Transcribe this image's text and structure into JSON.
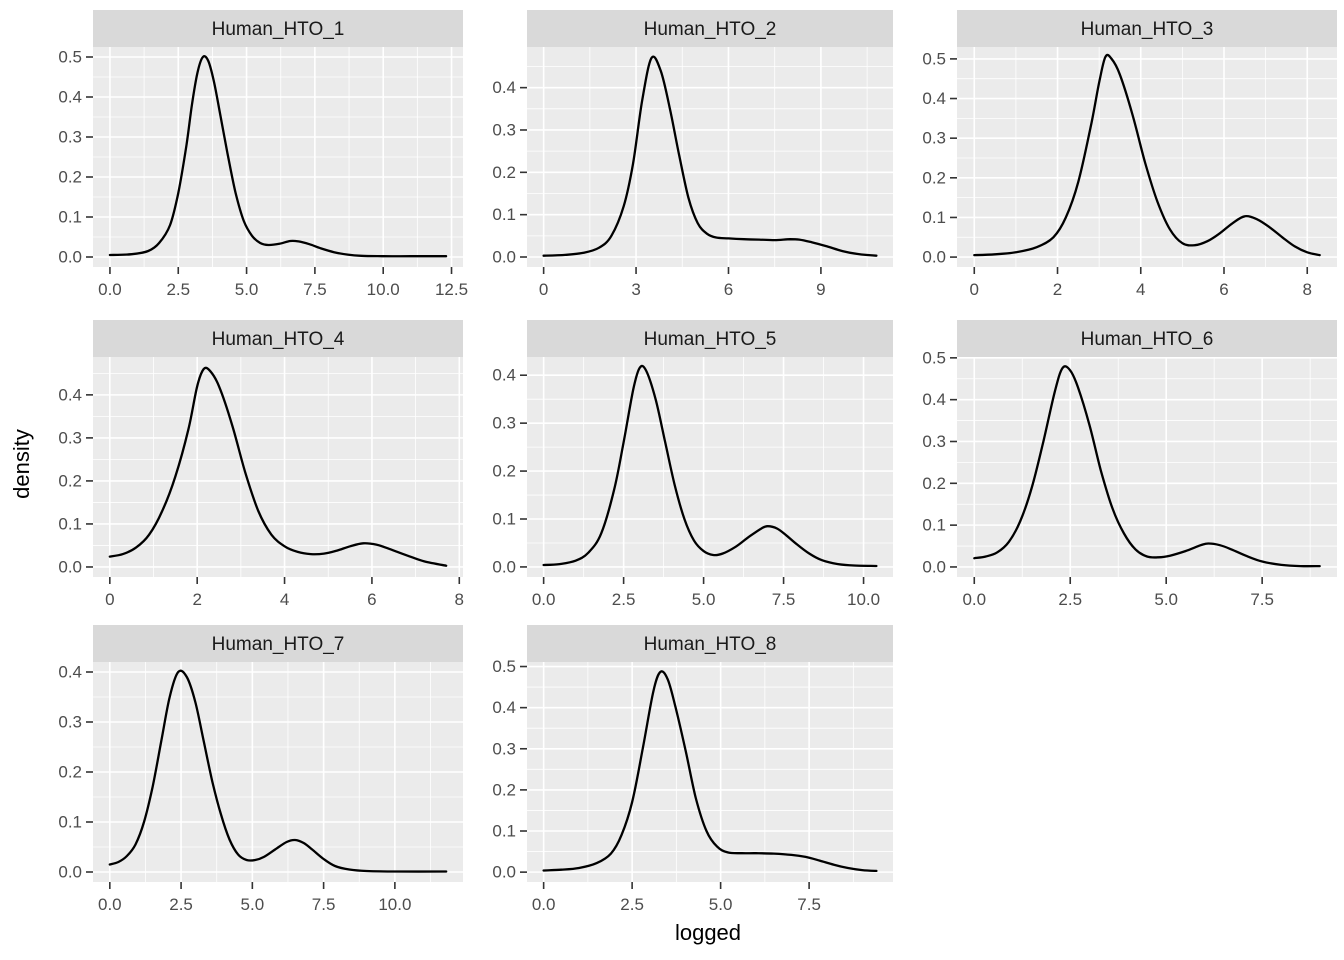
{
  "figure": {
    "background": "#FFFFFF"
  },
  "chart_data": {
    "type": "line",
    "subtype": "faceted_density_grid",
    "xlabel": "logged",
    "ylabel": "density",
    "grid": "on",
    "legend": "none",
    "facet_titles": [
      "Human_HTO_1",
      "Human_HTO_2",
      "Human_HTO_3",
      "Human_HTO_4",
      "Human_HTO_5",
      "Human_HTO_6",
      "Human_HTO_7",
      "Human_HTO_8"
    ],
    "colors": {
      "panel_bg": "#EBEBEB",
      "strip_bg": "#D9D9D9",
      "grid_major": "#FFFFFF",
      "grid_minor": "#FFFFFF",
      "curve": "#000000",
      "tick_label": "#4D4D4D",
      "tick_mark": "#333333",
      "strip_text": "#1A1A1A",
      "axis_title": "#000000"
    },
    "panels": [
      {
        "title": "Human_HTO_1",
        "xlim": [
          -0.62,
          12.92
        ],
        "ylim": [
          -0.025,
          0.525
        ],
        "xtick_values": [
          0,
          2.5,
          5,
          7.5,
          10,
          12.5
        ],
        "xtick_labels": [
          "0.0",
          "2.5",
          "5.0",
          "7.5",
          "10.0",
          "12.5"
        ],
        "ytick_values": [
          0,
          0.1,
          0.2,
          0.3,
          0.4,
          0.5
        ],
        "ytick_labels": [
          "0.0",
          "0.1",
          "0.2",
          "0.3",
          "0.4",
          "0.5"
        ],
        "points": [
          [
            0,
            0.005
          ],
          [
            0.8,
            0.007
          ],
          [
            1.4,
            0.015
          ],
          [
            1.8,
            0.035
          ],
          [
            2.2,
            0.08
          ],
          [
            2.5,
            0.16
          ],
          [
            2.8,
            0.28
          ],
          [
            3.0,
            0.38
          ],
          [
            3.2,
            0.46
          ],
          [
            3.4,
            0.5
          ],
          [
            3.6,
            0.49
          ],
          [
            3.8,
            0.44
          ],
          [
            4.0,
            0.37
          ],
          [
            4.3,
            0.26
          ],
          [
            4.6,
            0.16
          ],
          [
            4.9,
            0.09
          ],
          [
            5.2,
            0.053
          ],
          [
            5.5,
            0.035
          ],
          [
            5.8,
            0.03
          ],
          [
            6.2,
            0.033
          ],
          [
            6.6,
            0.04
          ],
          [
            6.9,
            0.039
          ],
          [
            7.3,
            0.032
          ],
          [
            7.7,
            0.022
          ],
          [
            8.2,
            0.012
          ],
          [
            8.7,
            0.006
          ],
          [
            9.2,
            0.003
          ],
          [
            10,
            0.002
          ],
          [
            11,
            0.002
          ],
          [
            12.3,
            0.002
          ]
        ]
      },
      {
        "title": "Human_HTO_2",
        "xlim": [
          -0.54,
          11.34
        ],
        "ylim": [
          -0.0236,
          0.496
        ],
        "xtick_values": [
          0,
          3,
          6,
          9
        ],
        "xtick_labels": [
          "0",
          "3",
          "6",
          "9"
        ],
        "ytick_values": [
          0,
          0.1,
          0.2,
          0.3,
          0.4
        ],
        "ytick_labels": [
          "0.0",
          "0.1",
          "0.2",
          "0.3",
          "0.4"
        ],
        "points": [
          [
            0,
            0.003
          ],
          [
            0.7,
            0.005
          ],
          [
            1.3,
            0.01
          ],
          [
            1.8,
            0.022
          ],
          [
            2.2,
            0.05
          ],
          [
            2.6,
            0.12
          ],
          [
            2.9,
            0.22
          ],
          [
            3.2,
            0.37
          ],
          [
            3.5,
            0.47
          ],
          [
            3.8,
            0.44
          ],
          [
            4.1,
            0.35
          ],
          [
            4.4,
            0.24
          ],
          [
            4.7,
            0.14
          ],
          [
            5.0,
            0.08
          ],
          [
            5.3,
            0.055
          ],
          [
            5.6,
            0.046
          ],
          [
            6.0,
            0.044
          ],
          [
            6.5,
            0.042
          ],
          [
            7.0,
            0.041
          ],
          [
            7.5,
            0.04
          ],
          [
            8.0,
            0.042
          ],
          [
            8.3,
            0.041
          ],
          [
            8.7,
            0.035
          ],
          [
            9.2,
            0.025
          ],
          [
            9.7,
            0.014
          ],
          [
            10.2,
            0.007
          ],
          [
            10.8,
            0.003
          ]
        ]
      },
      {
        "title": "Human_HTO_3",
        "xlim": [
          -0.415,
          8.715
        ],
        "ylim": [
          -0.025,
          0.53
        ],
        "xtick_values": [
          0,
          2,
          4,
          6,
          8
        ],
        "xtick_labels": [
          "0",
          "2",
          "4",
          "6",
          "8"
        ],
        "ytick_values": [
          0,
          0.1,
          0.2,
          0.3,
          0.4,
          0.5
        ],
        "ytick_labels": [
          "0.0",
          "0.1",
          "0.2",
          "0.3",
          "0.4",
          "0.5"
        ],
        "points": [
          [
            0,
            0.005
          ],
          [
            0.5,
            0.007
          ],
          [
            1.0,
            0.012
          ],
          [
            1.5,
            0.025
          ],
          [
            1.9,
            0.05
          ],
          [
            2.2,
            0.1
          ],
          [
            2.5,
            0.19
          ],
          [
            2.8,
            0.33
          ],
          [
            3.0,
            0.44
          ],
          [
            3.15,
            0.505
          ],
          [
            3.3,
            0.5
          ],
          [
            3.5,
            0.46
          ],
          [
            3.8,
            0.36
          ],
          [
            4.1,
            0.24
          ],
          [
            4.4,
            0.14
          ],
          [
            4.7,
            0.07
          ],
          [
            5.0,
            0.035
          ],
          [
            5.3,
            0.03
          ],
          [
            5.6,
            0.04
          ],
          [
            5.9,
            0.06
          ],
          [
            6.2,
            0.085
          ],
          [
            6.5,
            0.103
          ],
          [
            6.8,
            0.095
          ],
          [
            7.1,
            0.075
          ],
          [
            7.4,
            0.05
          ],
          [
            7.7,
            0.027
          ],
          [
            8.0,
            0.012
          ],
          [
            8.3,
            0.005
          ]
        ]
      },
      {
        "title": "Human_HTO_4",
        "xlim": [
          -0.385,
          8.085
        ],
        "ylim": [
          -0.0233,
          0.488
        ],
        "xtick_values": [
          0,
          2,
          4,
          6,
          8
        ],
        "xtick_labels": [
          "0",
          "2",
          "4",
          "6",
          "8"
        ],
        "ytick_values": [
          0,
          0.1,
          0.2,
          0.3,
          0.4
        ],
        "ytick_labels": [
          "0.0",
          "0.1",
          "0.2",
          "0.3",
          "0.4"
        ],
        "points": [
          [
            0,
            0.024
          ],
          [
            0.3,
            0.03
          ],
          [
            0.6,
            0.045
          ],
          [
            0.9,
            0.075
          ],
          [
            1.2,
            0.13
          ],
          [
            1.5,
            0.21
          ],
          [
            1.8,
            0.32
          ],
          [
            2.0,
            0.42
          ],
          [
            2.15,
            0.46
          ],
          [
            2.3,
            0.455
          ],
          [
            2.5,
            0.42
          ],
          [
            2.8,
            0.33
          ],
          [
            3.1,
            0.22
          ],
          [
            3.4,
            0.13
          ],
          [
            3.7,
            0.075
          ],
          [
            4.0,
            0.048
          ],
          [
            4.3,
            0.035
          ],
          [
            4.6,
            0.03
          ],
          [
            4.9,
            0.031
          ],
          [
            5.2,
            0.038
          ],
          [
            5.5,
            0.048
          ],
          [
            5.8,
            0.055
          ],
          [
            6.1,
            0.052
          ],
          [
            6.4,
            0.042
          ],
          [
            6.8,
            0.027
          ],
          [
            7.2,
            0.013
          ],
          [
            7.7,
            0.003
          ]
        ]
      },
      {
        "title": "Human_HTO_5",
        "xlim": [
          -0.52,
          10.92
        ],
        "ylim": [
          -0.021,
          0.438
        ],
        "xtick_values": [
          0,
          2.5,
          5,
          7.5,
          10
        ],
        "xtick_labels": [
          "0.0",
          "2.5",
          "5.0",
          "7.5",
          "10.0"
        ],
        "ytick_values": [
          0,
          0.1,
          0.2,
          0.3,
          0.4
        ],
        "ytick_labels": [
          "0.0",
          "0.1",
          "0.2",
          "0.3",
          "0.4"
        ],
        "points": [
          [
            0,
            0.004
          ],
          [
            0.5,
            0.006
          ],
          [
            1.0,
            0.013
          ],
          [
            1.4,
            0.03
          ],
          [
            1.8,
            0.07
          ],
          [
            2.2,
            0.16
          ],
          [
            2.5,
            0.26
          ],
          [
            2.8,
            0.37
          ],
          [
            3.0,
            0.415
          ],
          [
            3.2,
            0.41
          ],
          [
            3.5,
            0.35
          ],
          [
            3.8,
            0.26
          ],
          [
            4.1,
            0.17
          ],
          [
            4.4,
            0.1
          ],
          [
            4.7,
            0.055
          ],
          [
            5.0,
            0.033
          ],
          [
            5.3,
            0.025
          ],
          [
            5.6,
            0.028
          ],
          [
            6.0,
            0.042
          ],
          [
            6.4,
            0.062
          ],
          [
            6.8,
            0.08
          ],
          [
            7.0,
            0.085
          ],
          [
            7.3,
            0.08
          ],
          [
            7.6,
            0.065
          ],
          [
            7.9,
            0.048
          ],
          [
            8.3,
            0.028
          ],
          [
            8.7,
            0.014
          ],
          [
            9.2,
            0.006
          ],
          [
            9.7,
            0.003
          ],
          [
            10.4,
            0.002
          ]
        ]
      },
      {
        "title": "Human_HTO_6",
        "xlim": [
          -0.45,
          9.45
        ],
        "ylim": [
          -0.024,
          0.502
        ],
        "xtick_values": [
          0,
          2.5,
          5,
          7.5
        ],
        "xtick_labels": [
          "0.0",
          "2.5",
          "5.0",
          "7.5"
        ],
        "ytick_values": [
          0,
          0.1,
          0.2,
          0.3,
          0.4,
          0.5
        ],
        "ytick_labels": [
          "0.0",
          "0.1",
          "0.2",
          "0.3",
          "0.4",
          "0.5"
        ],
        "points": [
          [
            0,
            0.021
          ],
          [
            0.3,
            0.025
          ],
          [
            0.6,
            0.035
          ],
          [
            0.9,
            0.06
          ],
          [
            1.2,
            0.11
          ],
          [
            1.5,
            0.19
          ],
          [
            1.8,
            0.3
          ],
          [
            2.1,
            0.42
          ],
          [
            2.3,
            0.476
          ],
          [
            2.5,
            0.47
          ],
          [
            2.7,
            0.43
          ],
          [
            3.0,
            0.34
          ],
          [
            3.3,
            0.23
          ],
          [
            3.6,
            0.14
          ],
          [
            3.9,
            0.08
          ],
          [
            4.2,
            0.042
          ],
          [
            4.5,
            0.025
          ],
          [
            4.8,
            0.023
          ],
          [
            5.1,
            0.027
          ],
          [
            5.5,
            0.038
          ],
          [
            5.9,
            0.052
          ],
          [
            6.1,
            0.056
          ],
          [
            6.4,
            0.052
          ],
          [
            6.7,
            0.042
          ],
          [
            7.1,
            0.026
          ],
          [
            7.5,
            0.013
          ],
          [
            8.0,
            0.005
          ],
          [
            8.5,
            0.002
          ],
          [
            9.0,
            0.002
          ]
        ]
      },
      {
        "title": "Human_HTO_7",
        "xlim": [
          -0.59,
          12.39
        ],
        "ylim": [
          -0.02,
          0.42
        ],
        "xtick_values": [
          0,
          2.5,
          5,
          7.5,
          10
        ],
        "xtick_labels": [
          "0.0",
          "2.5",
          "5.0",
          "7.5",
          "10.0"
        ],
        "ytick_values": [
          0,
          0.1,
          0.2,
          0.3,
          0.4
        ],
        "ytick_labels": [
          "0.0",
          "0.1",
          "0.2",
          "0.3",
          "0.4"
        ],
        "points": [
          [
            0,
            0.015
          ],
          [
            0.3,
            0.02
          ],
          [
            0.6,
            0.032
          ],
          [
            0.9,
            0.055
          ],
          [
            1.2,
            0.1
          ],
          [
            1.5,
            0.17
          ],
          [
            1.8,
            0.26
          ],
          [
            2.1,
            0.35
          ],
          [
            2.4,
            0.4
          ],
          [
            2.7,
            0.39
          ],
          [
            3.0,
            0.34
          ],
          [
            3.3,
            0.26
          ],
          [
            3.6,
            0.18
          ],
          [
            3.9,
            0.115
          ],
          [
            4.2,
            0.065
          ],
          [
            4.5,
            0.035
          ],
          [
            4.8,
            0.024
          ],
          [
            5.1,
            0.024
          ],
          [
            5.4,
            0.03
          ],
          [
            5.8,
            0.045
          ],
          [
            6.2,
            0.06
          ],
          [
            6.5,
            0.064
          ],
          [
            6.8,
            0.058
          ],
          [
            7.1,
            0.045
          ],
          [
            7.5,
            0.026
          ],
          [
            7.9,
            0.012
          ],
          [
            8.4,
            0.005
          ],
          [
            9.0,
            0.002
          ],
          [
            10.0,
            0.001
          ],
          [
            11.8,
            0.001
          ]
        ]
      },
      {
        "title": "Human_HTO_8",
        "xlim": [
          -0.47,
          9.87
        ],
        "ylim": [
          -0.024,
          0.511
        ],
        "xtick_values": [
          0,
          2.5,
          5,
          7.5
        ],
        "xtick_labels": [
          "0.0",
          "2.5",
          "5.0",
          "7.5"
        ],
        "ytick_values": [
          0,
          0.1,
          0.2,
          0.3,
          0.4,
          0.5
        ],
        "ytick_labels": [
          "0.0",
          "0.1",
          "0.2",
          "0.3",
          "0.4",
          "0.5"
        ],
        "points": [
          [
            0,
            0.004
          ],
          [
            0.5,
            0.006
          ],
          [
            1.0,
            0.01
          ],
          [
            1.5,
            0.022
          ],
          [
            1.9,
            0.045
          ],
          [
            2.2,
            0.09
          ],
          [
            2.5,
            0.17
          ],
          [
            2.8,
            0.3
          ],
          [
            3.1,
            0.44
          ],
          [
            3.3,
            0.487
          ],
          [
            3.5,
            0.47
          ],
          [
            3.7,
            0.41
          ],
          [
            4.0,
            0.3
          ],
          [
            4.3,
            0.18
          ],
          [
            4.6,
            0.1
          ],
          [
            4.9,
            0.062
          ],
          [
            5.2,
            0.048
          ],
          [
            5.6,
            0.046
          ],
          [
            6.0,
            0.046
          ],
          [
            6.5,
            0.045
          ],
          [
            7.0,
            0.042
          ],
          [
            7.4,
            0.037
          ],
          [
            7.8,
            0.028
          ],
          [
            8.2,
            0.018
          ],
          [
            8.6,
            0.01
          ],
          [
            9.0,
            0.005
          ],
          [
            9.4,
            0.003
          ]
        ]
      }
    ]
  }
}
